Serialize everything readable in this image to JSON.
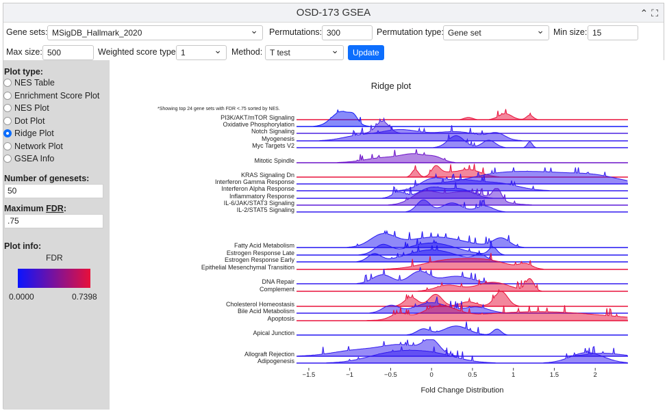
{
  "window": {
    "title": "OSD-173 GSEA"
  },
  "controls": {
    "gene_sets_label": "Gene sets:",
    "gene_sets_value": "MSigDB_Hallmark_2020",
    "permutations_label": "Permutations:",
    "permutations_value": "300",
    "permutation_type_label": "Permutation type:",
    "permutation_type_value": "Gene set",
    "min_size_label": "Min size:",
    "min_size_value": "15",
    "max_size_label": "Max size:",
    "max_size_value": "500",
    "weighted_label": "Weighted score type:",
    "weighted_value": "1",
    "method_label": "Method:",
    "method_value": "T test",
    "update_label": "Update"
  },
  "sidebar": {
    "plot_type_label": "Plot type:",
    "plot_types": [
      "NES Table",
      "Enrichment Score Plot",
      "NES Plot",
      "Dot Plot",
      "Ridge Plot",
      "Network Plot",
      "GSEA Info"
    ],
    "selected_plot_type": "Ridge Plot",
    "num_genesets_label": "Number of genesets:",
    "num_genesets_value": "50",
    "max_fdr_label": "Maximum",
    "max_fdr_abbr": "FDR",
    "max_fdr_colon": ":",
    "max_fdr_value": ".75",
    "plot_info_label": "Plot info:",
    "colorbar_title": "FDR",
    "colorbar_min": "0.0000",
    "colorbar_max": "0.7398",
    "colors": {
      "low": "#0a14ff",
      "high": "#e8103a"
    }
  },
  "chart_data": {
    "type": "ridge",
    "title": "Ridge plot",
    "note": "*Showing top 24 gene sets with FDR <.75 sorted by NES.",
    "xlabel": "Fold Change Distribution",
    "xlim": [
      -1.65,
      2.4
    ],
    "xticks": [
      "−1.5",
      "−1",
      "−0.5",
      "0",
      "0.5",
      "1",
      "1.5",
      "2"
    ],
    "xtick_values": [
      -1.5,
      -1,
      -0.5,
      0,
      0.5,
      1,
      1.5,
      2
    ],
    "rows": [
      {
        "name": "PI3K/AKT/mTOR  Signaling",
        "color": "#e8103a",
        "fdr": 0.7,
        "peaks": [
          [
            0.45,
            0.05,
            0.15
          ],
          [
            0.9,
            0.08,
            0.4
          ],
          [
            1.2,
            0.04,
            0.3
          ]
        ]
      },
      {
        "name": "Oxidative Phosphorylation",
        "color": "#1018f5",
        "fdr": 0.02,
        "peaks": [
          [
            -1.1,
            0.12,
            1.0
          ],
          [
            -0.95,
            0.05,
            0.4
          ]
        ]
      },
      {
        "name": "Notch Signaling",
        "color": "#4a20e0",
        "fdr": 0.15,
        "peaks": [
          [
            -0.6,
            0.08,
            0.8
          ]
        ]
      },
      {
        "name": "Myogenesis",
        "color": "#3018ef",
        "fdr": 0.1,
        "peaks": [
          [
            -0.9,
            0.2,
            0.3
          ],
          [
            -0.4,
            0.25,
            0.7
          ],
          [
            0.3,
            0.3,
            0.6
          ],
          [
            0.8,
            0.1,
            0.4
          ]
        ]
      },
      {
        "name": "Myc Targets V2",
        "color": "#3018ef",
        "fdr": 0.1,
        "peaks": [
          [
            0.3,
            0.1,
            0.8
          ],
          [
            0.7,
            0.08,
            0.5
          ],
          [
            1.2,
            0.03,
            0.4
          ]
        ]
      },
      {
        "name": "Mitotic Spindle",
        "color": "#6a10c8",
        "fdr": 0.3,
        "peaks": [
          [
            -0.55,
            0.25,
            0.35
          ],
          [
            -0.2,
            0.15,
            0.45
          ],
          [
            0.05,
            0.1,
            0.3
          ]
        ]
      },
      {
        "name": "KRAS Signaling Dn",
        "color": "#e8103a",
        "fdr": 0.7,
        "peaks": [
          [
            -0.2,
            0.04,
            0.5
          ],
          [
            0.05,
            0.05,
            0.6
          ],
          [
            0.45,
            0.15,
            0.5
          ],
          [
            0.15,
            0.1,
            0.25
          ]
        ]
      },
      {
        "name": "Interferon Gamma Response",
        "color": "#3018ef",
        "fdr": 0.1,
        "peaks": [
          [
            0.8,
            0.35,
            0.6
          ],
          [
            1.4,
            0.35,
            0.6
          ],
          [
            2.0,
            0.3,
            0.5
          ]
        ]
      },
      {
        "name": "Interferon Alpha Response",
        "color": "#3018ef",
        "fdr": 0.1,
        "peaks": [
          [
            0.0,
            0.15,
            0.7
          ],
          [
            0.35,
            0.2,
            0.6
          ],
          [
            0.8,
            0.25,
            0.5
          ]
        ]
      },
      {
        "name": "Inflammatory Response",
        "color": "#3018ef",
        "fdr": 0.1,
        "peaks": [
          [
            -0.4,
            0.08,
            0.4
          ],
          [
            0.0,
            0.15,
            0.7
          ],
          [
            0.35,
            0.15,
            0.6
          ]
        ]
      },
      {
        "name": "IL-6/JAK/STAT3 Signaling",
        "color": "#5a18d8",
        "fdr": 0.25,
        "peaks": [
          [
            -0.1,
            0.15,
            0.7
          ],
          [
            0.4,
            0.3,
            0.9
          ],
          [
            0.8,
            0.05,
            0.8
          ]
        ]
      },
      {
        "name": "IL-2/STAT5 Signaling",
        "color": "#3018ef",
        "fdr": 0.1,
        "peaks": [
          [
            -0.1,
            0.08,
            0.8
          ],
          [
            0.25,
            0.12,
            0.6
          ],
          [
            0.65,
            0.1,
            0.4
          ]
        ]
      },
      {
        "name": "Fatty Acid Metabolism",
        "color": "#2014f2",
        "fdr": 0.05,
        "peaks": [
          [
            -0.6,
            0.15,
            0.8
          ],
          [
            0.05,
            0.35,
            0.7
          ],
          [
            0.85,
            0.1,
            0.6
          ]
        ]
      },
      {
        "name": "Estrogen Response Late",
        "color": "#2014f2",
        "fdr": 0.05,
        "peaks": [
          [
            -0.6,
            0.1,
            0.6
          ],
          [
            0.0,
            0.3,
            0.8
          ],
          [
            0.75,
            0.05,
            0.5
          ]
        ]
      },
      {
        "name": "Estrogen Response Early",
        "color": "#2014f2",
        "fdr": 0.05,
        "peaks": [
          [
            -0.7,
            0.08,
            0.5
          ],
          [
            0.0,
            0.3,
            0.8
          ],
          [
            0.6,
            0.08,
            0.4
          ]
        ]
      },
      {
        "name": "Epithelial Mesenchymal Transition",
        "color": "#e8103a",
        "fdr": 0.7,
        "peaks": [
          [
            0.2,
            0.3,
            0.6
          ],
          [
            0.7,
            0.25,
            0.5
          ],
          [
            1.15,
            0.08,
            0.3
          ]
        ]
      },
      {
        "name": "DNA Repair",
        "color": "#3018ef",
        "fdr": 0.1,
        "peaks": [
          [
            -0.6,
            0.12,
            0.6
          ],
          [
            -0.15,
            0.12,
            0.8
          ],
          [
            0.3,
            0.2,
            0.5
          ]
        ]
      },
      {
        "name": "Complement",
        "color": "#e8103a",
        "fdr": 0.7,
        "peaks": [
          [
            0.2,
            0.15,
            0.4
          ],
          [
            0.75,
            0.2,
            0.6
          ],
          [
            1.2,
            0.05,
            0.8
          ]
        ]
      },
      {
        "name": "Cholesterol Homeostasis",
        "color": "#e8103a",
        "fdr": 0.7,
        "peaks": [
          [
            -0.25,
            0.08,
            0.6
          ],
          [
            0.05,
            0.08,
            0.8
          ],
          [
            0.85,
            0.08,
            1.0
          ],
          [
            0.45,
            0.1,
            0.3
          ]
        ]
      },
      {
        "name": "Bile Acid Metabolism",
        "color": "#3018ef",
        "fdr": 0.1,
        "peaks": [
          [
            -0.5,
            0.1,
            0.5
          ],
          [
            0.0,
            0.2,
            0.7
          ],
          [
            0.55,
            0.15,
            0.4
          ]
        ]
      },
      {
        "name": "Apoptosis",
        "color": "#e8103a",
        "fdr": 0.7,
        "peaks": [
          [
            -0.4,
            0.1,
            0.4
          ],
          [
            0.1,
            0.2,
            0.8
          ],
          [
            1.3,
            0.8,
            0.6
          ]
        ]
      },
      {
        "name": "Apical Junction",
        "color": "#2014f2",
        "fdr": 0.05,
        "peaks": [
          [
            -0.1,
            0.08,
            0.4
          ],
          [
            0.3,
            0.15,
            0.6
          ],
          [
            0.8,
            0.05,
            0.4
          ]
        ]
      },
      {
        "name": "Allograft Rejection",
        "color": "#3018ef",
        "fdr": 0.1,
        "peaks": [
          [
            -0.9,
            0.3,
            0.4
          ],
          [
            -0.35,
            0.25,
            0.7
          ],
          [
            0.0,
            0.1,
            0.9
          ],
          [
            2.1,
            0.2,
            0.2
          ]
        ]
      },
      {
        "name": "Adipogenesis",
        "color": "#3018ef",
        "fdr": 0.1,
        "peaks": [
          [
            -0.5,
            0.3,
            0.6
          ],
          [
            0.0,
            0.3,
            0.6
          ],
          [
            1.9,
            0.2,
            0.7
          ]
        ]
      }
    ]
  }
}
